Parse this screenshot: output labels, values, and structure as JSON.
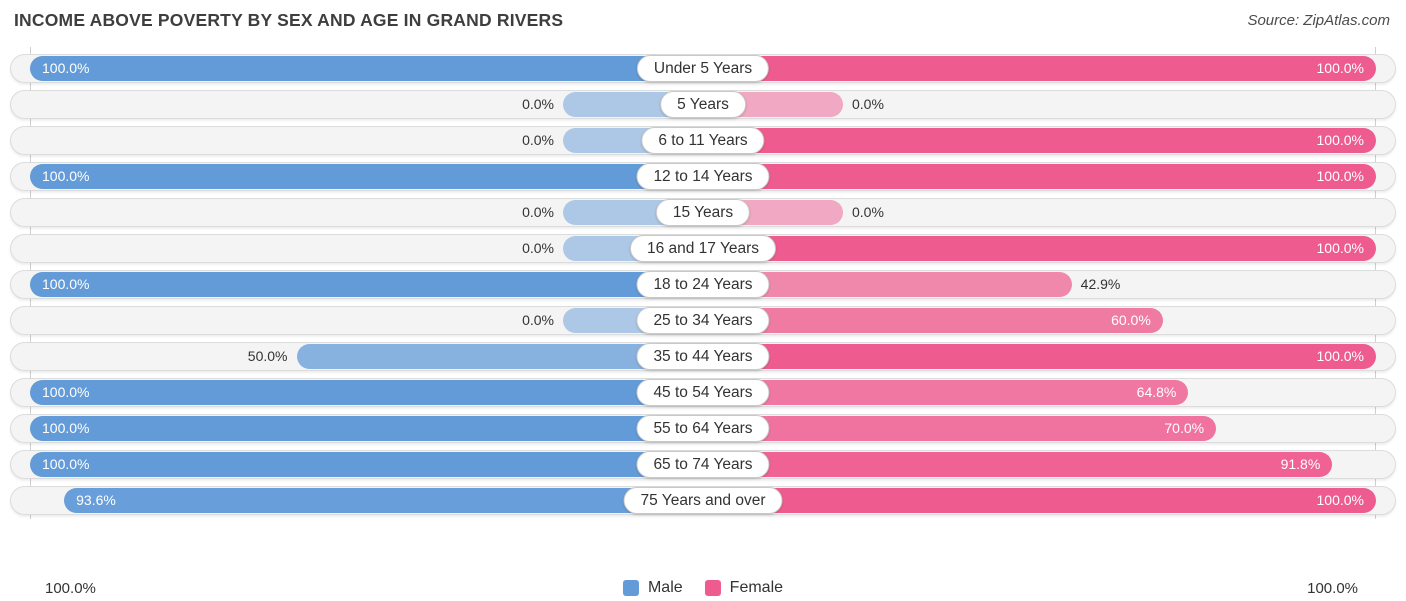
{
  "header": {
    "title": "INCOME ABOVE POVERTY BY SEX AND AGE IN GRAND RIVERS",
    "source": "Source: ZipAtlas.com"
  },
  "colors": {
    "male": "#639bd8",
    "female": "#ee5c8f",
    "track_bg": "#f4f4f4",
    "track_border": "#dcdcdc"
  },
  "axis": {
    "left_label": "100.0%",
    "right_label": "100.0%"
  },
  "legend": {
    "items": [
      {
        "label": "Male",
        "color": "#639bd8"
      },
      {
        "label": "Female",
        "color": "#ee5c8f"
      }
    ]
  },
  "chart_data": {
    "type": "bar",
    "orientation": "bidirectional-horizontal",
    "title": "INCOME ABOVE POVERTY BY SEX AND AGE IN GRAND RIVERS",
    "categories": [
      "Under 5 Years",
      "5 Years",
      "6 to 11 Years",
      "12 to 14 Years",
      "15 Years",
      "16 and 17 Years",
      "18 to 24 Years",
      "25 to 34 Years",
      "35 to 44 Years",
      "45 to 54 Years",
      "55 to 64 Years",
      "65 to 74 Years",
      "75 Years and over"
    ],
    "series": [
      {
        "name": "Male",
        "values": [
          100.0,
          0.0,
          0.0,
          100.0,
          0.0,
          0.0,
          100.0,
          0.0,
          50.0,
          100.0,
          100.0,
          100.0,
          93.6
        ]
      },
      {
        "name": "Female",
        "values": [
          100.0,
          0.0,
          100.0,
          100.0,
          0.0,
          100.0,
          42.9,
          60.0,
          100.0,
          64.8,
          70.0,
          91.8,
          100.0
        ]
      }
    ],
    "value_suffix": "%",
    "xlim": [
      0,
      100
    ],
    "legend_position": "bottom-center",
    "grid": "vertical-lines-at-100-percent"
  }
}
